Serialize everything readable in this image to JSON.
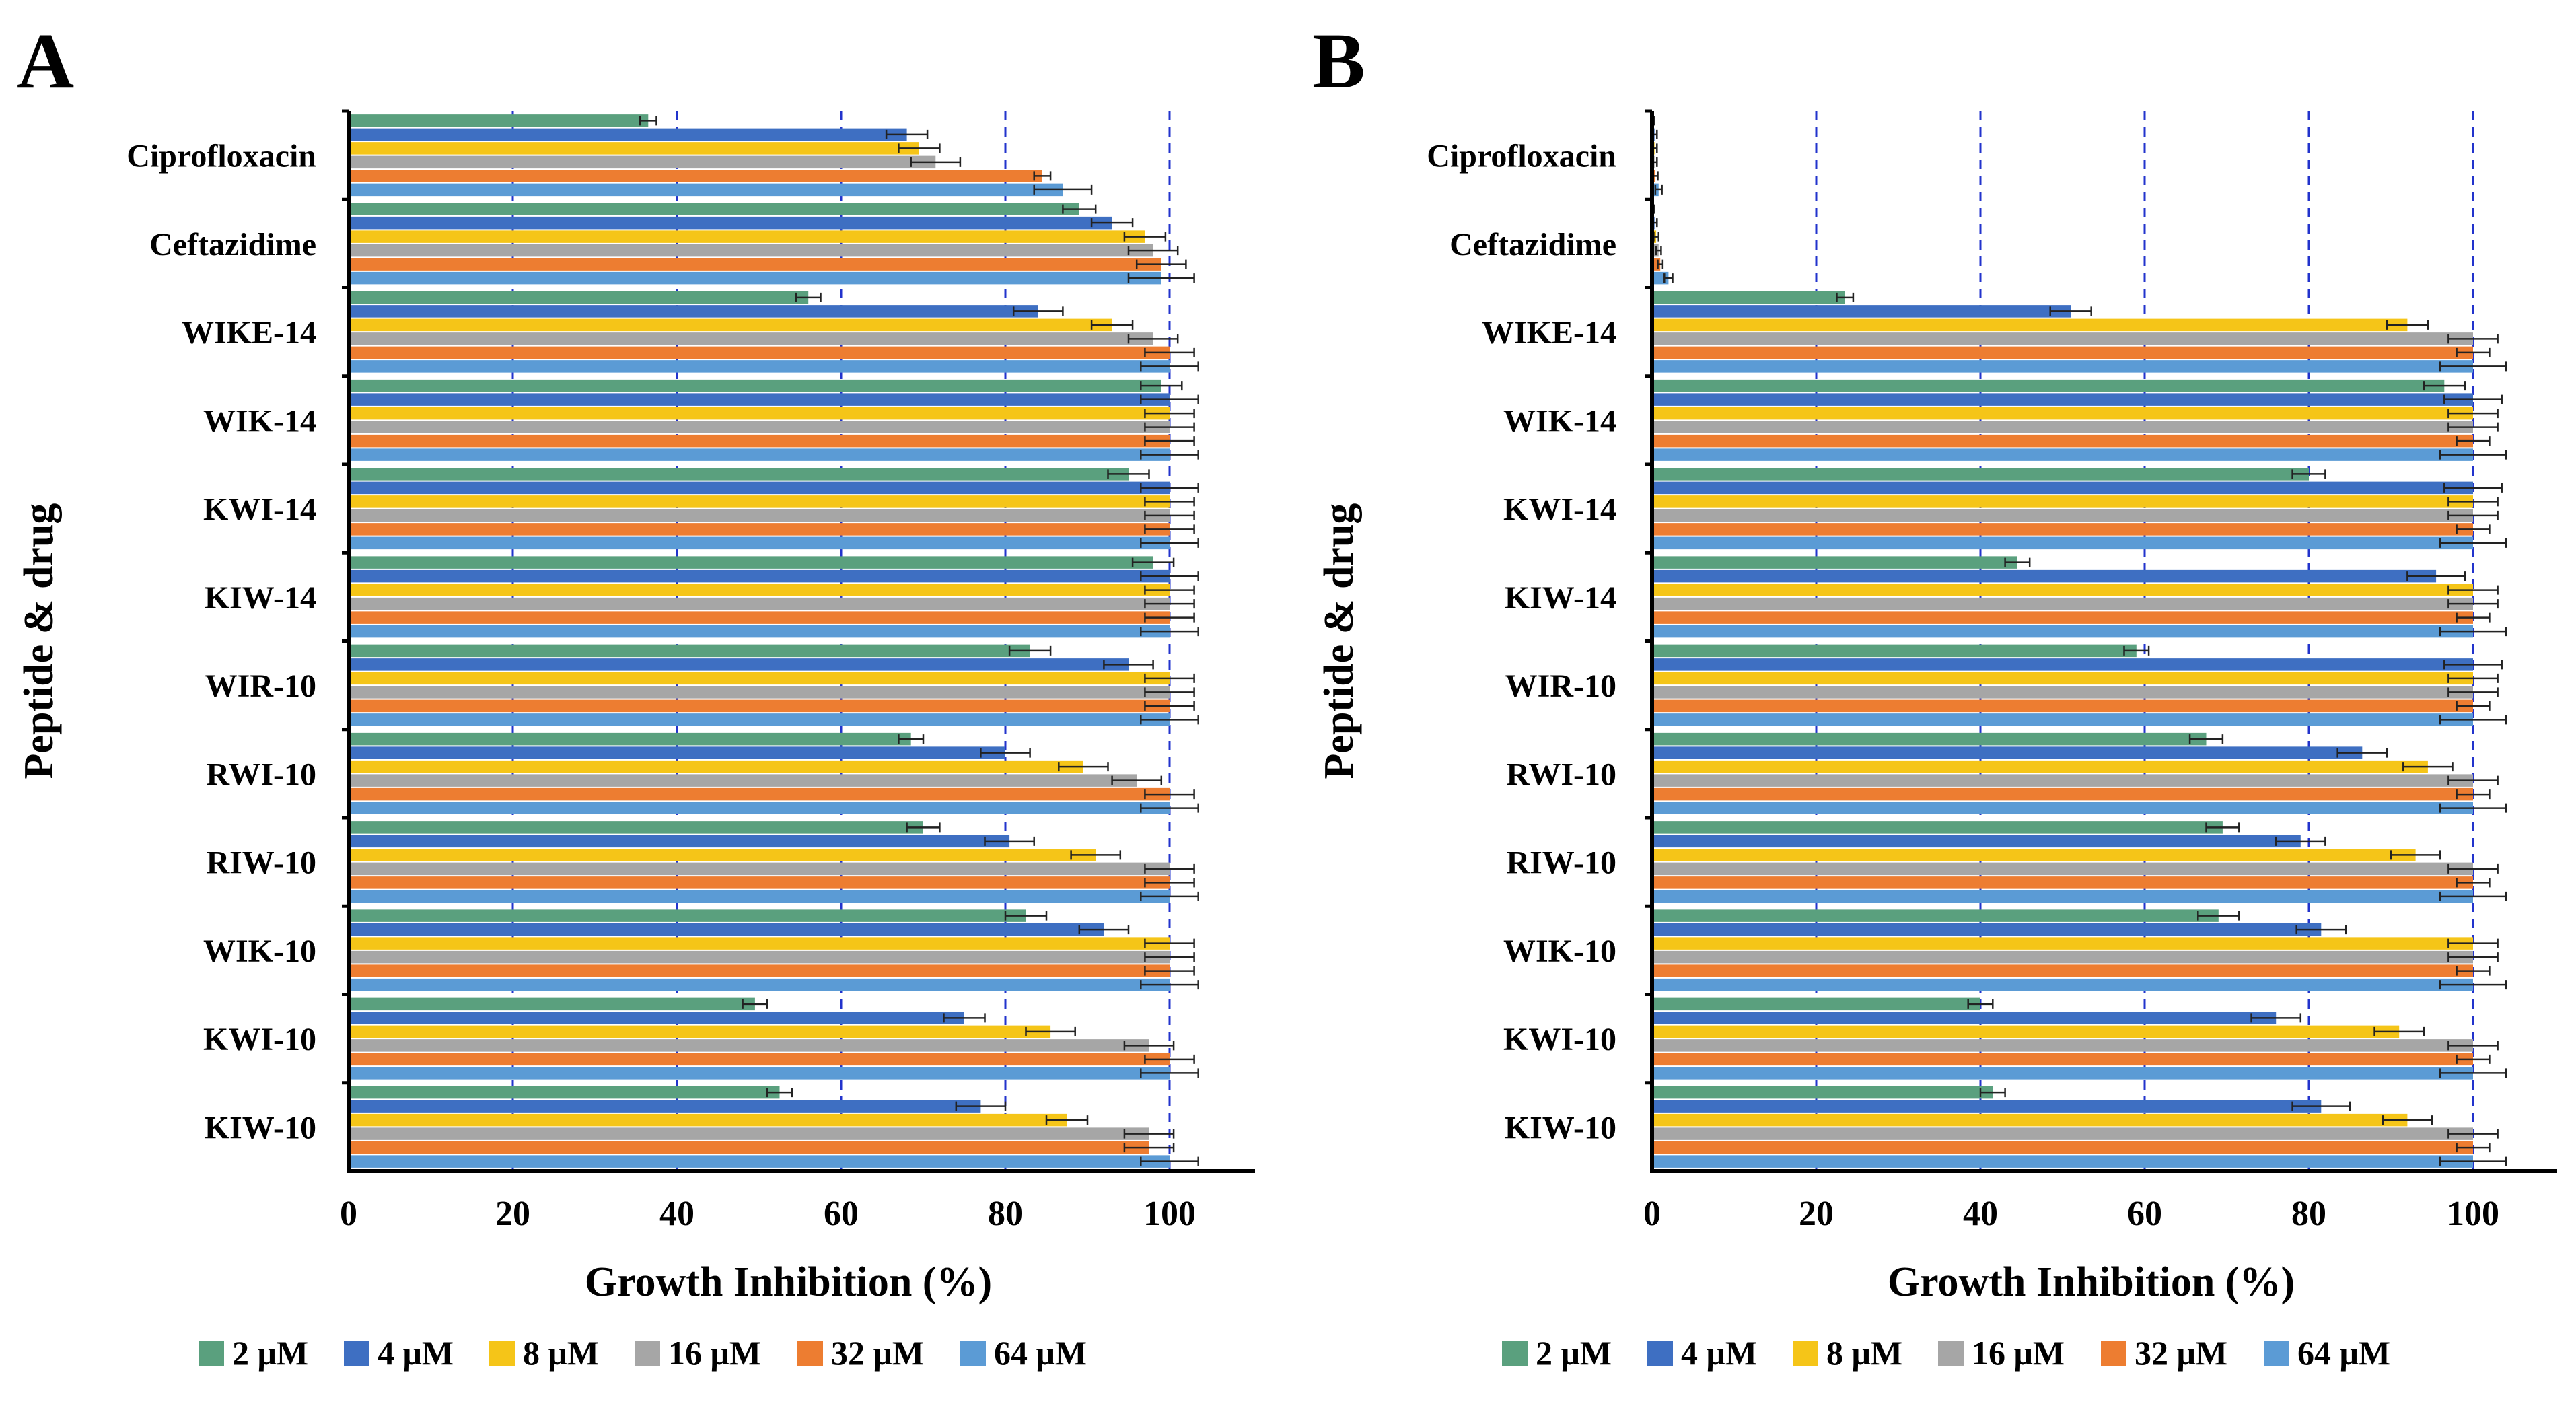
{
  "figure": {
    "legend": [
      {
        "label": "2 μM",
        "color": "#5aa07e"
      },
      {
        "label": "4 μM",
        "color": "#3e6fc2"
      },
      {
        "label": "8 μM",
        "color": "#f5c518"
      },
      {
        "label": "16 μM",
        "color": "#a6a6a6"
      },
      {
        "label": "32 μM",
        "color": "#ed7d31"
      },
      {
        "label": "64 μM",
        "color": "#5b9bd5"
      }
    ],
    "gridline_color": "#2233cc"
  },
  "chart_data": [
    {
      "type": "bar",
      "orientation": "horizontal",
      "panel": "A",
      "xlabel": "Growth Inhibition (%)",
      "ylabel": "Peptide & drug",
      "xlim": [
        0,
        110
      ],
      "xticks": [
        0,
        20,
        40,
        60,
        80,
        100
      ],
      "grid_x": [
        20,
        40,
        60,
        80,
        100
      ],
      "categories": [
        "Ciprofloxacin",
        "Ceftazidime",
        "WIKE-14",
        "WIK-14",
        "KWI-14",
        "KIW-14",
        "WIR-10",
        "RWI-10",
        "RIW-10",
        "WIK-10",
        "KWI-10",
        "KIW-10"
      ],
      "series": [
        {
          "name": "2 μM",
          "values": [
            36.5,
            89,
            56,
            99,
            95,
            98,
            83,
            68.5,
            70,
            82.5,
            49.5,
            52.5
          ],
          "errors": [
            1,
            2,
            1.5,
            2.5,
            2.5,
            2.5,
            2.5,
            1.5,
            2,
            2.5,
            1.5,
            1.5
          ]
        },
        {
          "name": "4 μM",
          "values": [
            68,
            93,
            84,
            100,
            100,
            100,
            95,
            80,
            80.5,
            92,
            75,
            77
          ],
          "errors": [
            2.5,
            2.5,
            3,
            3.5,
            3.5,
            3.5,
            3,
            3,
            3,
            3,
            2.5,
            3
          ]
        },
        {
          "name": "8 μM",
          "values": [
            69.5,
            97,
            93,
            100,
            100,
            100,
            100,
            89.5,
            91,
            100,
            85.5,
            87.5
          ],
          "errors": [
            2.5,
            2.5,
            2.5,
            3,
            3,
            3,
            3,
            3,
            3,
            3,
            3,
            2.5
          ]
        },
        {
          "name": "16 μM",
          "values": [
            71.5,
            98,
            98,
            100,
            100,
            100,
            100,
            96,
            100,
            100,
            97.5,
            97.5
          ],
          "errors": [
            3,
            3,
            3,
            3,
            3,
            3,
            3,
            3,
            3,
            3,
            3,
            3
          ]
        },
        {
          "name": "32 μM",
          "values": [
            84.5,
            99,
            100,
            100,
            100,
            100,
            100,
            100,
            100,
            100,
            100,
            97.5
          ],
          "errors": [
            1,
            3,
            3,
            3,
            3,
            3,
            3,
            3,
            3,
            3,
            3,
            3
          ]
        },
        {
          "name": "64 μM",
          "values": [
            87,
            99,
            100,
            100,
            100,
            100,
            100,
            100,
            100,
            100,
            100,
            100
          ],
          "errors": [
            3.5,
            4,
            3.5,
            3.5,
            3.5,
            3.5,
            3.5,
            3.5,
            3.5,
            3.5,
            3.5,
            3.5
          ]
        }
      ]
    },
    {
      "type": "bar",
      "orientation": "horizontal",
      "panel": "B",
      "xlabel": "Growth Inhibition (%)",
      "ylabel": "Peptide & drug",
      "xlim": [
        0,
        110
      ],
      "xticks": [
        0,
        20,
        40,
        60,
        80,
        100
      ],
      "grid_x": [
        20,
        40,
        60,
        80,
        100
      ],
      "categories": [
        "Ciprofloxacin",
        "Ceftazidime",
        "WIKE-14",
        "WIK-14",
        "KWI-14",
        "KIW-14",
        "WIR-10",
        "RWI-10",
        "RIW-10",
        "WIK-10",
        "KWI-10",
        "KIW-10"
      ],
      "series": [
        {
          "name": "2 μM",
          "values": [
            0,
            0,
            23.5,
            96.5,
            80,
            44.5,
            59,
            67.5,
            69.5,
            69,
            40,
            41.5
          ],
          "errors": [
            0.3,
            0.3,
            1,
            2.5,
            2,
            1.5,
            1.5,
            2,
            2,
            2.5,
            1.5,
            1.5
          ]
        },
        {
          "name": "4 μM",
          "values": [
            0.3,
            0.3,
            51,
            100,
            100,
            95.5,
            100,
            86.5,
            79,
            81.5,
            76,
            81.5
          ],
          "errors": [
            0.3,
            0.3,
            2.5,
            3.5,
            3.5,
            3.5,
            3.5,
            3,
            3,
            3,
            3,
            3.5
          ]
        },
        {
          "name": "8 μM",
          "values": [
            0.3,
            0.5,
            92,
            100,
            100,
            100,
            100,
            94.5,
            93,
            100,
            91,
            92
          ],
          "errors": [
            0.3,
            0.3,
            2.5,
            3,
            3,
            3,
            3,
            3,
            3,
            3,
            3,
            3
          ]
        },
        {
          "name": "16 μM",
          "values": [
            0.3,
            0.8,
            100,
            100,
            100,
            100,
            100,
            100,
            100,
            100,
            100,
            100
          ],
          "errors": [
            0.3,
            0.3,
            3,
            3,
            3,
            3,
            3,
            3,
            3,
            3,
            3,
            3
          ]
        },
        {
          "name": "32 μM",
          "values": [
            0.4,
            1,
            100,
            100,
            100,
            100,
            100,
            100,
            100,
            100,
            100,
            100
          ],
          "errors": [
            0.3,
            0.3,
            2,
            2,
            2,
            2,
            2,
            2,
            2,
            2,
            2,
            2
          ]
        },
        {
          "name": "64 μM",
          "values": [
            0.8,
            2,
            100,
            100,
            100,
            100,
            100,
            100,
            100,
            100,
            100,
            100
          ],
          "errors": [
            0.4,
            0.5,
            4,
            4,
            4,
            4,
            4,
            4,
            4,
            4,
            4,
            4
          ]
        }
      ]
    }
  ]
}
